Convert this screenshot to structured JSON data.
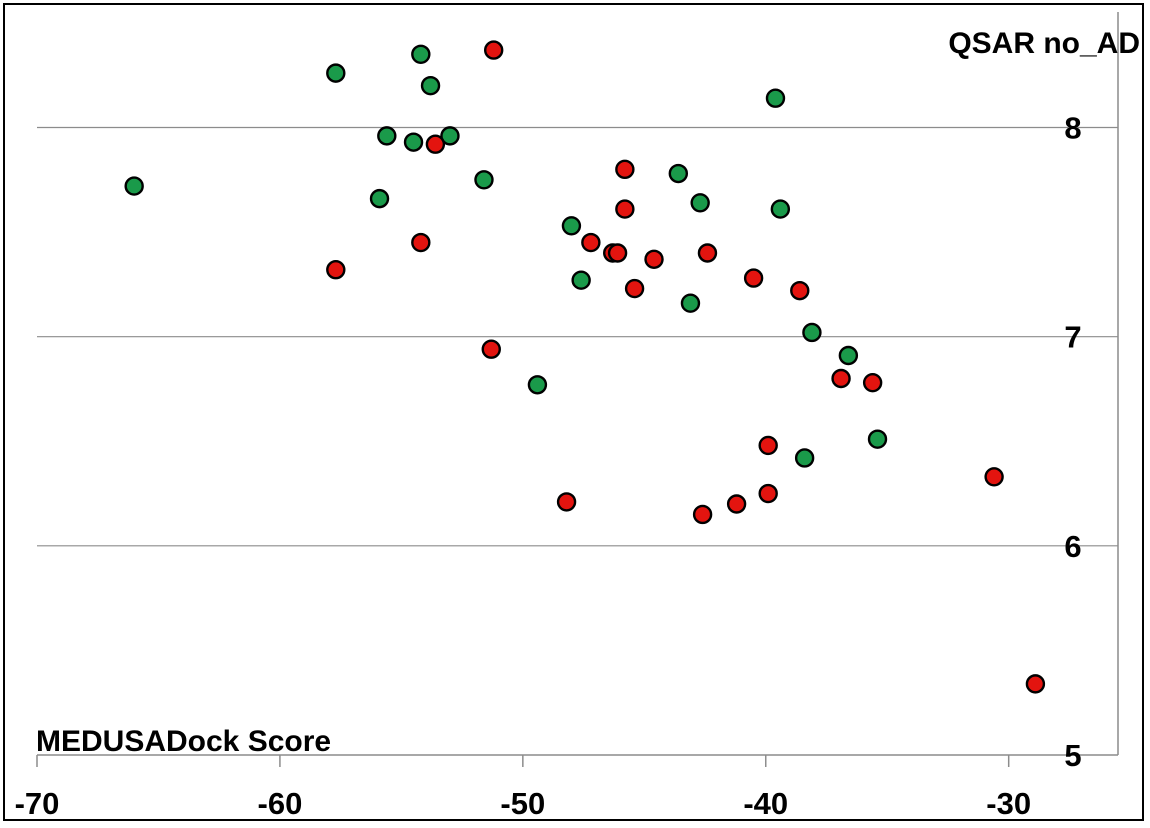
{
  "chart_data": {
    "type": "scatter",
    "xlabel": "MEDUSADock Score",
    "ylabel": "QSAR no_AD",
    "xlim": [
      -70,
      -25.5
    ],
    "ylim": [
      5,
      8.6
    ],
    "x_ticks": [
      "-70",
      "-60",
      "-50",
      "-40",
      "-30"
    ],
    "y_ticks": [
      "5",
      "6",
      "7",
      "8"
    ],
    "grid": "horizontal",
    "legend": "none",
    "series": [
      {
        "color": "#1a9a4a",
        "points": [
          {
            "x": -66.0,
            "y": 7.72
          },
          {
            "x": -57.7,
            "y": 8.26
          },
          {
            "x": -55.9,
            "y": 7.66
          },
          {
            "x": -55.6,
            "y": 7.96
          },
          {
            "x": -54.5,
            "y": 7.93
          },
          {
            "x": -54.2,
            "y": 8.35
          },
          {
            "x": -53.8,
            "y": 8.2
          },
          {
            "x": -53.0,
            "y": 7.96
          },
          {
            "x": -51.6,
            "y": 7.75
          },
          {
            "x": -49.4,
            "y": 6.77
          },
          {
            "x": -48.0,
            "y": 7.53
          },
          {
            "x": -47.6,
            "y": 7.27
          },
          {
            "x": -43.6,
            "y": 7.78
          },
          {
            "x": -43.1,
            "y": 7.16
          },
          {
            "x": -42.7,
            "y": 7.64
          },
          {
            "x": -39.6,
            "y": 8.14
          },
          {
            "x": -39.4,
            "y": 7.61
          },
          {
            "x": -38.4,
            "y": 6.42
          },
          {
            "x": -38.1,
            "y": 7.02
          },
          {
            "x": -36.6,
            "y": 6.91
          },
          {
            "x": -35.4,
            "y": 6.51
          }
        ]
      },
      {
        "color": "#e3140f",
        "points": [
          {
            "x": -57.7,
            "y": 7.32
          },
          {
            "x": -54.2,
            "y": 7.45
          },
          {
            "x": -53.6,
            "y": 7.92
          },
          {
            "x": -51.2,
            "y": 8.37
          },
          {
            "x": -51.3,
            "y": 6.94
          },
          {
            "x": -48.2,
            "y": 6.21
          },
          {
            "x": -47.2,
            "y": 7.45
          },
          {
            "x": -46.3,
            "y": 7.4
          },
          {
            "x": -46.1,
            "y": 7.4
          },
          {
            "x": -45.8,
            "y": 7.8
          },
          {
            "x": -45.8,
            "y": 7.61
          },
          {
            "x": -45.4,
            "y": 7.23
          },
          {
            "x": -44.6,
            "y": 7.37
          },
          {
            "x": -42.6,
            "y": 6.15
          },
          {
            "x": -42.4,
            "y": 7.4
          },
          {
            "x": -41.2,
            "y": 6.2
          },
          {
            "x": -40.5,
            "y": 7.28
          },
          {
            "x": -39.9,
            "y": 6.48
          },
          {
            "x": -39.9,
            "y": 6.25
          },
          {
            "x": -38.6,
            "y": 7.22
          },
          {
            "x": -36.9,
            "y": 6.8
          },
          {
            "x": -35.6,
            "y": 6.78
          },
          {
            "x": -30.6,
            "y": 6.33
          },
          {
            "x": -28.9,
            "y": 5.34
          }
        ]
      }
    ]
  }
}
